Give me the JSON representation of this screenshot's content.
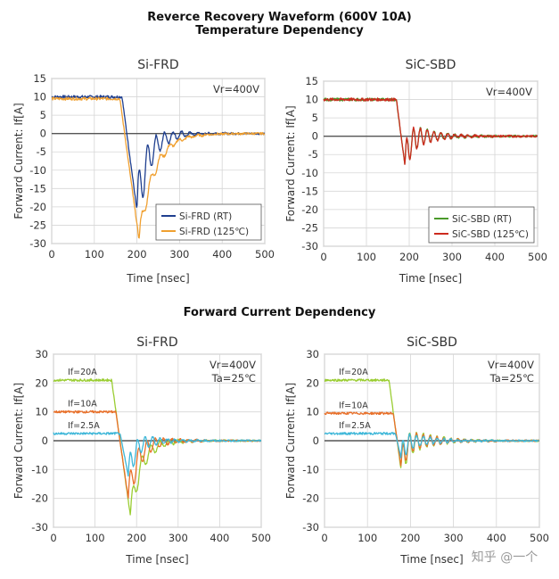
{
  "section1": {
    "title_line1": "Reverce Recovery Waveform (600V 10A)",
    "title_line2": "Temperature Dependency"
  },
  "section2": {
    "title": "Forward Current Dependency"
  },
  "colors": {
    "si_rt": "#1f3f8f",
    "si_125": "#f0a030",
    "sic_rt": "#4a9a2a",
    "sic_125": "#cc2a1e",
    "if20": "#9acd32",
    "if10": "#e8702a",
    "if25": "#3cb6d8"
  },
  "watermark": "知乎 @一个",
  "chart_data": [
    {
      "type": "line",
      "title": "Si-FRD",
      "ylabel": "Forward Current: If[A]",
      "xlabel": "Time [nsec]",
      "xlim": [
        0,
        500
      ],
      "ylim": [
        -30,
        15
      ],
      "xticks": [
        0,
        100,
        200,
        300,
        400,
        500
      ],
      "yticks": [
        15,
        10,
        5,
        0,
        -5,
        -10,
        -15,
        -20,
        -25,
        -30
      ],
      "grid": true,
      "legend_position": "bottom-right",
      "annotations": [
        "Vr=400V"
      ],
      "series": [
        {
          "name": "Si-FRD (RT)",
          "color_key": "si_rt",
          "if0": 10,
          "t0": 165,
          "peak_t": 200,
          "peak": -21,
          "rec": 25,
          "amp": 8,
          "period": 20,
          "decay": 45
        },
        {
          "name": "Si-FRD (125℃)",
          "color_key": "si_125",
          "if0": 9.5,
          "t0": 160,
          "peak_t": 205,
          "peak": -29,
          "rec": 35,
          "amp": 3,
          "period": 22,
          "decay": 50
        }
      ]
    },
    {
      "type": "line",
      "title": "SiC-SBD",
      "ylabel": "Forward Current: If[A]",
      "xlabel": "Time [nsec]",
      "xlim": [
        0,
        500
      ],
      "ylim": [
        -30,
        15
      ],
      "xticks": [
        0,
        100,
        200,
        300,
        400,
        500
      ],
      "yticks": [
        15,
        10,
        5,
        0,
        -5,
        -10,
        -15,
        -20,
        -25,
        -30
      ],
      "grid": true,
      "legend_position": "bottom-right",
      "annotations": [
        "Vr=400V"
      ],
      "series": [
        {
          "name": "SiC-SBD (RT)",
          "color_key": "sic_rt",
          "if0": 10,
          "t0": 170,
          "peak_t": 190,
          "peak": -8,
          "rec": 10,
          "amp": 5,
          "period": 16,
          "decay": 50
        },
        {
          "name": "SiC-SBD (125℃)",
          "color_key": "sic_125",
          "if0": 10,
          "t0": 170,
          "peak_t": 190,
          "peak": -8,
          "rec": 10,
          "amp": 5,
          "period": 16,
          "decay": 50
        }
      ]
    },
    {
      "type": "line",
      "title": "Si-FRD",
      "ylabel": "Forward Current: If[A]",
      "xlabel": "Time [nsec]",
      "xlim": [
        0,
        500
      ],
      "ylim": [
        -30,
        30
      ],
      "xticks": [
        0,
        100,
        200,
        300,
        400,
        500
      ],
      "yticks": [
        30,
        20,
        10,
        0,
        -10,
        -20,
        -30
      ],
      "grid": true,
      "annotations": [
        "Vr=400V",
        "Ta=25℃"
      ],
      "series": [
        {
          "name": "If=20A",
          "color_key": "if20",
          "if0": 21,
          "t0": 140,
          "peak_t": 185,
          "peak": -26,
          "rec": 25,
          "amp": 5,
          "period": 22,
          "decay": 55
        },
        {
          "name": "If=10A",
          "color_key": "if10",
          "if0": 10,
          "t0": 150,
          "peak_t": 180,
          "peak": -20,
          "rec": 22,
          "amp": 6,
          "period": 20,
          "decay": 55
        },
        {
          "name": "If=2.5A",
          "color_key": "if25",
          "if0": 2.5,
          "t0": 160,
          "peak_t": 180,
          "peak": -12,
          "rec": 15,
          "amp": 5,
          "period": 18,
          "decay": 50
        }
      ]
    },
    {
      "type": "line",
      "title": "SiC-SBD",
      "ylabel": "Forward Current: If[A]",
      "xlabel": "Time [nsec]",
      "xlim": [
        0,
        500
      ],
      "ylim": [
        -30,
        30
      ],
      "xticks": [
        0,
        100,
        200,
        300,
        400,
        500
      ],
      "yticks": [
        30,
        20,
        10,
        0,
        -10,
        -20,
        -30
      ],
      "grid": true,
      "annotations": [
        "Vr=400V",
        "Ta=25℃"
      ],
      "series": [
        {
          "name": "If=20A",
          "color_key": "if20",
          "if0": 21,
          "t0": 150,
          "peak_t": 178,
          "peak": -10,
          "rec": 10,
          "amp": 6,
          "period": 16,
          "decay": 60
        },
        {
          "name": "If=10A",
          "color_key": "if10",
          "if0": 9.5,
          "t0": 160,
          "peak_t": 178,
          "peak": -9,
          "rec": 10,
          "amp": 5,
          "period": 16,
          "decay": 60
        },
        {
          "name": "If=2.5A",
          "color_key": "if25",
          "if0": 2.5,
          "t0": 165,
          "peak_t": 178,
          "peak": -6,
          "rec": 8,
          "amp": 4,
          "period": 16,
          "decay": 55
        }
      ]
    }
  ]
}
